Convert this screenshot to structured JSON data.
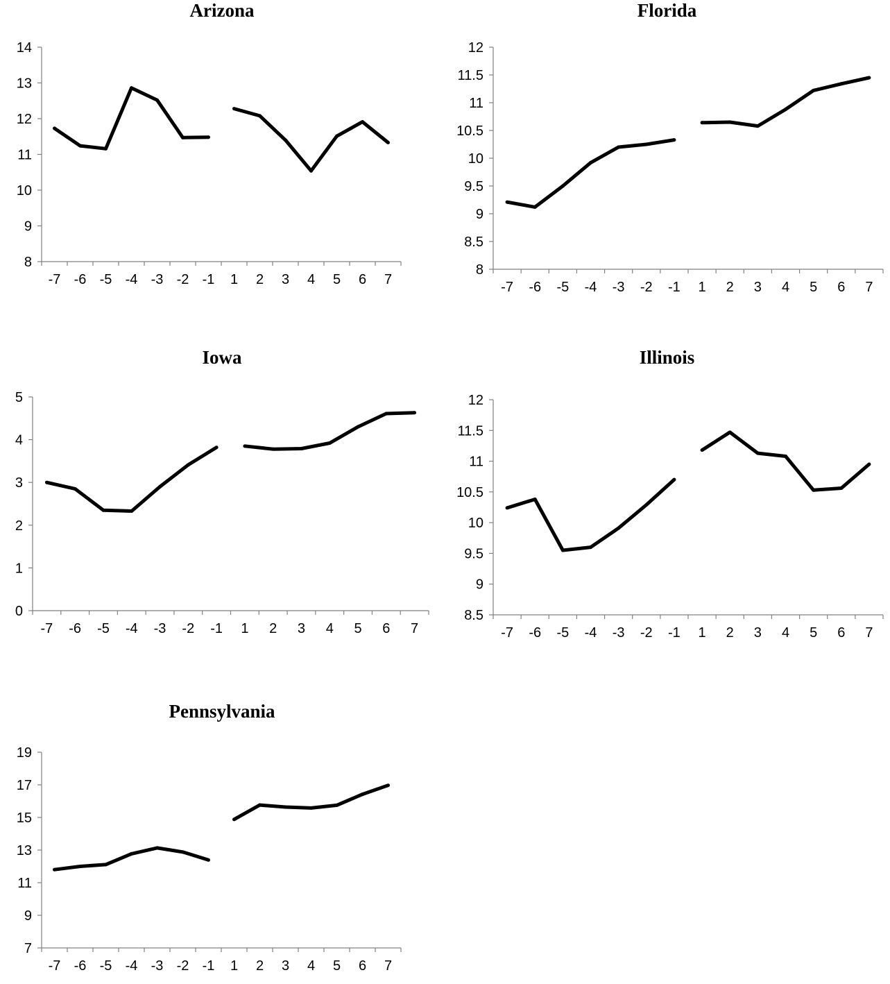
{
  "chart_data": [
    {
      "type": "line",
      "title": "Arizona",
      "categories": [
        "-7",
        "-6",
        "-5",
        "-4",
        "-3",
        "-2",
        "-1",
        "1",
        "2",
        "3",
        "4",
        "5",
        "6",
        "7"
      ],
      "ylim": [
        8,
        14
      ],
      "yticks": [
        "8",
        "9",
        "10",
        "11",
        "12",
        "13",
        "14"
      ],
      "series": [
        {
          "values": [
            11.73,
            11.24,
            11.16,
            12.86,
            12.52,
            11.47,
            11.48,
            12.28,
            12.08,
            11.4,
            10.54,
            11.51,
            11.91,
            11.33
          ]
        }
      ],
      "gap_after_index": 6,
      "line_color": "#000000",
      "grid": false
    },
    {
      "type": "line",
      "title": "Florida",
      "categories": [
        "-7",
        "-6",
        "-5",
        "-4",
        "-3",
        "-2",
        "-1",
        "1",
        "2",
        "3",
        "4",
        "5",
        "6",
        "7"
      ],
      "ylim": [
        8,
        12
      ],
      "yticks": [
        "8",
        "8.5",
        "9",
        "9.5",
        "10",
        "10.5",
        "11",
        "11.5",
        "12"
      ],
      "series": [
        {
          "values": [
            9.21,
            9.12,
            9.5,
            9.92,
            10.2,
            10.25,
            10.33,
            10.64,
            10.65,
            10.58,
            10.88,
            11.22,
            11.34,
            11.45
          ]
        }
      ],
      "gap_after_index": 6,
      "line_color": "#000000",
      "grid": false
    },
    {
      "type": "line",
      "title": "Iowa",
      "categories": [
        "-7",
        "-6",
        "-5",
        "-4",
        "-3",
        "-2",
        "-1",
        "1",
        "2",
        "3",
        "4",
        "5",
        "6",
        "7"
      ],
      "ylim": [
        0,
        5
      ],
      "yticks": [
        "0",
        "1",
        "2",
        "3",
        "4",
        "5"
      ],
      "series": [
        {
          "values": [
            3.0,
            2.85,
            2.35,
            2.33,
            2.9,
            3.41,
            3.82,
            3.85,
            3.78,
            3.79,
            3.92,
            4.3,
            4.61,
            4.63
          ]
        }
      ],
      "gap_after_index": 6,
      "line_color": "#000000",
      "grid": false
    },
    {
      "type": "line",
      "title": "Illinois",
      "categories": [
        "-7",
        "-6",
        "-5",
        "-4",
        "-3",
        "-2",
        "-1",
        "1",
        "2",
        "3",
        "4",
        "5",
        "6",
        "7"
      ],
      "ylim": [
        8.5,
        12
      ],
      "yticks": [
        "8.5",
        "9",
        "9.5",
        "10",
        "10.5",
        "11",
        "11.5",
        "12"
      ],
      "series": [
        {
          "values": [
            10.24,
            10.38,
            9.55,
            9.6,
            9.91,
            10.29,
            10.7,
            11.18,
            11.47,
            11.13,
            11.08,
            10.53,
            10.56,
            10.95
          ]
        }
      ],
      "gap_after_index": 6,
      "line_color": "#000000",
      "grid": false
    },
    {
      "type": "line",
      "title": "Pennsylvania",
      "categories": [
        "-7",
        "-6",
        "-5",
        "-4",
        "-3",
        "-2",
        "-1",
        "1",
        "2",
        "3",
        "4",
        "5",
        "6",
        "7"
      ],
      "ylim": [
        7,
        19
      ],
      "yticks": [
        "7",
        "9",
        "11",
        "13",
        "15",
        "17",
        "19"
      ],
      "series": [
        {
          "values": [
            11.8,
            12.0,
            12.11,
            12.77,
            13.13,
            12.88,
            12.39,
            14.88,
            15.76,
            15.64,
            15.58,
            15.75,
            16.42,
            16.97
          ]
        }
      ],
      "gap_after_index": 6,
      "line_color": "#000000",
      "grid": false
    }
  ]
}
